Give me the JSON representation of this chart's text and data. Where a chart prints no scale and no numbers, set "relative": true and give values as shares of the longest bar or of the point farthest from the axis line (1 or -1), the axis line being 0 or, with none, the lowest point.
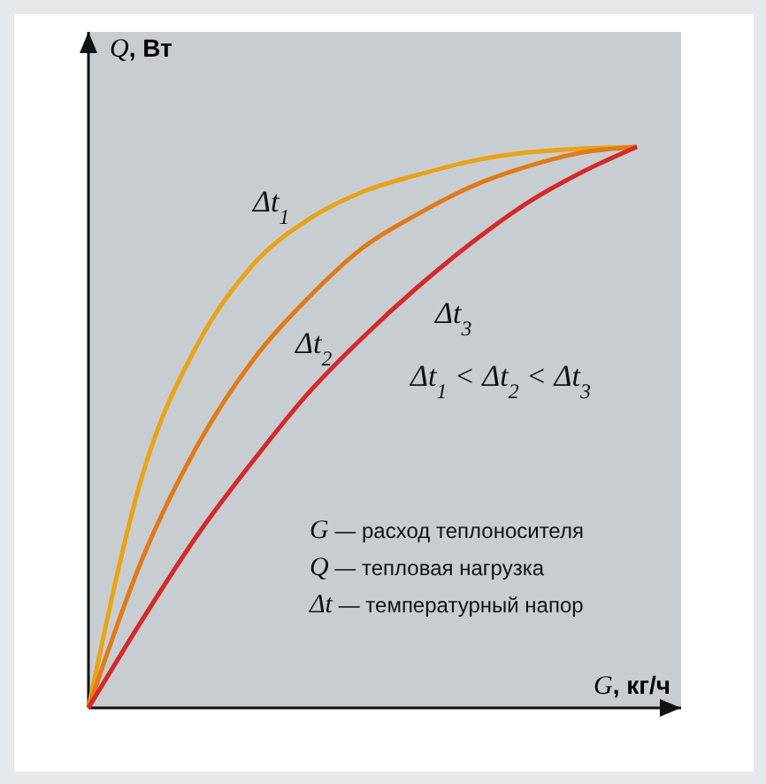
{
  "chart_data": {
    "type": "line",
    "relative": true,
    "xlabel": "G, кг/ч",
    "ylabel": "Q, Вт",
    "categories": [
      null,
      null,
      null,
      null,
      null,
      null,
      null,
      null,
      null,
      null,
      null
    ],
    "series": [
      {
        "name": "Δt$_{1}$",
        "color": "#e8a317",
        "values": [
          0,
          0.42,
          0.65,
          0.79,
          0.87,
          0.92,
          0.95,
          0.975,
          0.99,
          0.997,
          1
        ]
      },
      {
        "name": "Δt$_{2}$",
        "color": "#e07b1a",
        "values": [
          0,
          0.27,
          0.47,
          0.62,
          0.73,
          0.82,
          0.88,
          0.93,
          0.965,
          0.99,
          1
        ]
      },
      {
        "name": "Δt$_{3}$",
        "color": "#d42a2a",
        "values": [
          0,
          0.16,
          0.31,
          0.44,
          0.56,
          0.66,
          0.75,
          0.83,
          0.9,
          0.955,
          1
        ]
      }
    ],
    "annotations": [
      "Δt$_{1}$ < Δt$_{2}$ < Δt$_{3}$",
      "G — расход теплоносителя",
      "Q — тепловая нагрузка",
      "Δt — температурный напор"
    ],
    "grid": false,
    "marker": "none",
    "line_style": "solid"
  }
}
